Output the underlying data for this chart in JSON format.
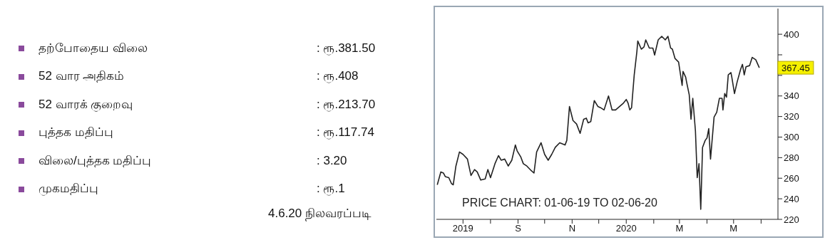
{
  "chart_data": [
    {
      "type": "other",
      "annotations": [
        "தற்போதைய விலை",
        ": ரூ.381.50",
        "52 வார அதிகம்",
        ": ரூ.408",
        "52 வாரக் குறைவு",
        ": ரூ.213.70",
        "புத்தக மதிப்பு",
        ": ரூ.117.74",
        "விலை/புத்தக மதிப்பு",
        ": 3.20",
        "முகமதிப்பு",
        ": ரூ.1",
        "4.6.20 நிலவரப்படி"
      ]
    },
    {
      "type": "line",
      "grid": false,
      "legend": false,
      "xlim": [
        "2019-06-01",
        "2020-06-20"
      ],
      "xticks": [
        {
          "value": "2019-07-01",
          "label": "2019"
        },
        {
          "value": "2019-08-01",
          "label": null
        },
        {
          "value": "2019-09-01",
          "label": "S"
        },
        {
          "value": "2019-10-01",
          "label": null
        },
        {
          "value": "2019-11-01",
          "label": "N"
        },
        {
          "value": "2019-12-01",
          "label": null
        },
        {
          "value": "2020-01-01",
          "label": "2020"
        },
        {
          "value": "2020-02-01",
          "label": null
        },
        {
          "value": "2020-03-01",
          "label": "M"
        },
        {
          "value": "2020-04-01",
          "label": null
        },
        {
          "value": "2020-05-01",
          "label": "M"
        },
        {
          "value": "2020-06-01",
          "label": null
        }
      ],
      "ylim": [
        220,
        425
      ],
      "yticks": [
        220,
        240,
        260,
        280,
        300,
        320,
        340,
        {
          "value": 360,
          "label": null
        },
        {
          "value": 380,
          "label": null
        },
        400
      ],
      "annotations": [
        "PRICE CHART: 01-06-19 TO 02-06-20",
        {
          "text": "367.45",
          "x": "2020-05-30",
          "y": 367.45
        }
      ],
      "series": [
        {
          "color": "#222222",
          "x": [
            "2019-06-02",
            "2019-06-06",
            "2019-06-09",
            "2019-06-11",
            "2019-06-15",
            "2019-06-18",
            "2019-06-20",
            "2019-06-23",
            "2019-06-27",
            "2019-07-01",
            "2019-07-06",
            "2019-07-10",
            "2019-07-14",
            "2019-07-17",
            "2019-07-21",
            "2019-07-26",
            "2019-07-29",
            "2019-08-01",
            "2019-08-06",
            "2019-08-10",
            "2019-08-13",
            "2019-08-17",
            "2019-08-21",
            "2019-08-25",
            "2019-08-29",
            "2019-08-31",
            "2019-09-04",
            "2019-09-07",
            "2019-09-11",
            "2019-09-16",
            "2019-09-19",
            "2019-09-22",
            "2019-09-27",
            "2019-10-01",
            "2019-10-05",
            "2019-10-09",
            "2019-10-13",
            "2019-10-18",
            "2019-10-24",
            "2019-10-26",
            "2019-10-29",
            "2019-11-02",
            "2019-11-06",
            "2019-11-10",
            "2019-11-14",
            "2019-11-17",
            "2019-11-19",
            "2019-11-22",
            "2019-11-26",
            "2019-11-30",
            "2019-12-03",
            "2019-12-07",
            "2019-12-12",
            "2019-12-16",
            "2019-12-20",
            "2019-12-29",
            "2020-01-01",
            "2020-01-03",
            "2020-01-05",
            "2020-01-07",
            "2020-01-10",
            "2020-01-13",
            "2020-01-14",
            "2020-01-18",
            "2020-01-21",
            "2020-01-23",
            "2020-01-27",
            "2020-01-31",
            "2020-02-02",
            "2020-02-06",
            "2020-02-10",
            "2020-02-14",
            "2020-02-17",
            "2020-02-20",
            "2020-02-22",
            "2020-02-25",
            "2020-02-29",
            "2020-03-04",
            "2020-03-05",
            "2020-03-08",
            "2020-03-09",
            "2020-03-12",
            "2020-03-14",
            "2020-03-16",
            "2020-03-19",
            "2020-03-21",
            "2020-03-23",
            "2020-03-25",
            "2020-03-27",
            "2020-03-30",
            "2020-04-01",
            "2020-04-03",
            "2020-04-05",
            "2020-04-09",
            "2020-04-12",
            "2020-04-15",
            "2020-04-18",
            "2020-04-19",
            "2020-04-21",
            "2020-04-23",
            "2020-04-25",
            "2020-04-28",
            "2020-04-29",
            "2020-05-02",
            "2020-05-05",
            "2020-05-09",
            "2020-05-11",
            "2020-05-13",
            "2020-05-15",
            "2020-05-19",
            "2020-05-22",
            "2020-05-26",
            "2020-05-30"
          ],
          "values": [
            253.6,
            266.1,
            265,
            261.6,
            260.5,
            254.8,
            253.6,
            271.8,
            285.5,
            283.2,
            278.6,
            262.7,
            268.4,
            266.1,
            258.2,
            259.3,
            268.4,
            260.5,
            274.1,
            282,
            277.5,
            278.6,
            271.8,
            277.5,
            292.3,
            286.6,
            280.9,
            274.1,
            271.8,
            267.3,
            265,
            285.5,
            294.5,
            283.2,
            277.5,
            283.2,
            290,
            294.5,
            292.3,
            296.8,
            329.8,
            316.1,
            312.7,
            303.6,
            317.3,
            318.4,
            313.9,
            315,
            335.5,
            329.8,
            328.6,
            326.4,
            340,
            326.4,
            326.4,
            333.2,
            336.6,
            333.2,
            326.4,
            328.6,
            360.5,
            383.2,
            393.4,
            385.5,
            387.7,
            394.5,
            386.6,
            386.6,
            379.8,
            394.5,
            398,
            394.5,
            398,
            386.6,
            385.5,
            376.4,
            373,
            350.2,
            363.9,
            358.2,
            353.6,
            341.1,
            317.3,
            337.7,
            305.9,
            260.5,
            274.1,
            229.8,
            290,
            296.8,
            299.1,
            308.2,
            278.6,
            319.5,
            324.1,
            337.7,
            337.7,
            326.4,
            342.3,
            338.9,
            360.5,
            362.7,
            358.2,
            342.3,
            353.6,
            366.1,
            370.7,
            360.5,
            368.4,
            369.5,
            377.5,
            375.2,
            367.45
          ]
        }
      ]
    }
  ]
}
